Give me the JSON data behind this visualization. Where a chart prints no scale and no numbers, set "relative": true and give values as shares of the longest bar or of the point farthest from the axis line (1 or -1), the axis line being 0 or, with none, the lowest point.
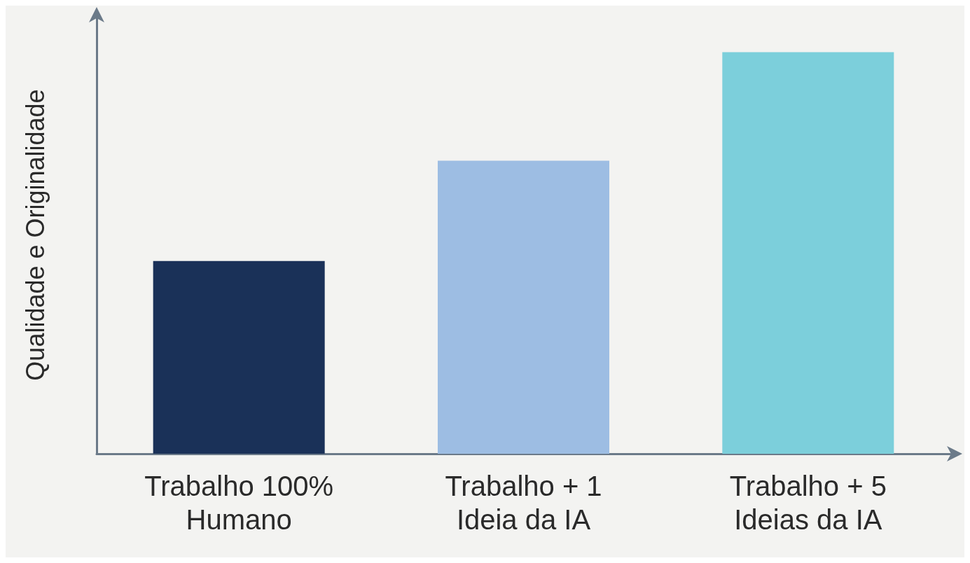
{
  "chart_data": {
    "type": "bar",
    "relative": true,
    "ylabel": "Qualidade e Originalidade",
    "categories": [
      "Trabalho 100%\nHumano",
      "Trabalho + 1\nIdeia da IA",
      "Trabalho + 5\nIdeias da IA"
    ],
    "values": [
      0.48,
      0.73,
      1
    ],
    "colors": [
      "#1a3158",
      "#9dbde3",
      "#7ccfdb"
    ]
  }
}
